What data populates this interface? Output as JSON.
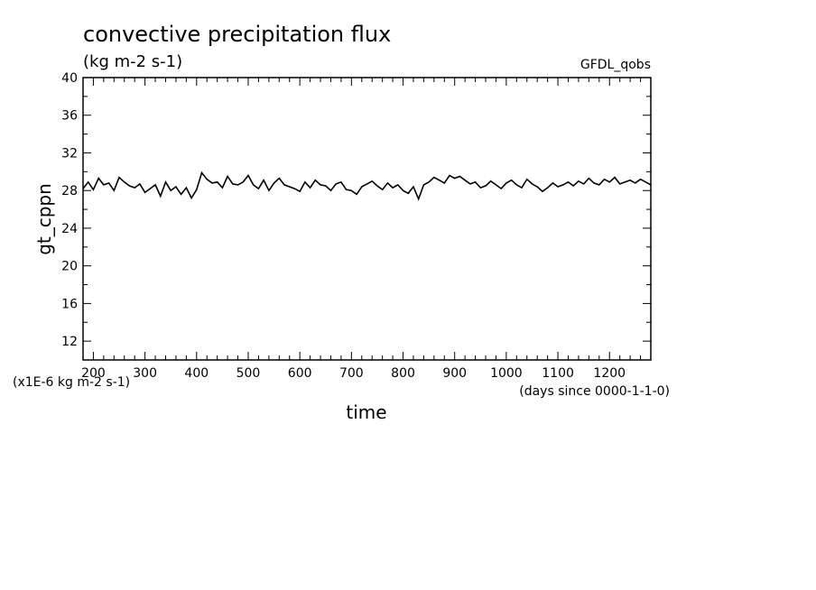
{
  "chart_data": {
    "type": "line",
    "title": "convective precipitation flux",
    "units": "(kg m-2 s-1)",
    "source": "GFDL_qobs",
    "xlabel": "time",
    "x_units": "(days since 0000-1-1-0)",
    "ylabel": "gt_cppn",
    "y_scale_note": "(x1E-6 kg m-2 s-1)",
    "xlim": [
      180,
      1280
    ],
    "ylim": [
      10,
      40
    ],
    "x_ticks": [
      200,
      300,
      400,
      500,
      600,
      700,
      800,
      900,
      1000,
      1100,
      1200
    ],
    "y_ticks": [
      12,
      16,
      20,
      24,
      28,
      32,
      36,
      40
    ],
    "grid": false,
    "series": [
      {
        "x": [
          180,
          190,
          200,
          210,
          220,
          230,
          240,
          250,
          260,
          270,
          280,
          290,
          300,
          310,
          320,
          330,
          340,
          350,
          360,
          370,
          380,
          390,
          400,
          410,
          420,
          430,
          440,
          450,
          460,
          470,
          480,
          490,
          500,
          510,
          520,
          530,
          540,
          550,
          560,
          570,
          580,
          590,
          600,
          610,
          620,
          630,
          640,
          650,
          660,
          670,
          680,
          690,
          700,
          710,
          720,
          730,
          740,
          750,
          760,
          770,
          780,
          790,
          800,
          810,
          820,
          830,
          840,
          850,
          860,
          870,
          880,
          890,
          900,
          910,
          920,
          930,
          940,
          950,
          960,
          970,
          980,
          990,
          1000,
          1010,
          1020,
          1030,
          1040,
          1050,
          1060,
          1070,
          1080,
          1090,
          1100,
          1110,
          1120,
          1130,
          1140,
          1150,
          1160,
          1170,
          1180,
          1190,
          1200,
          1210,
          1220,
          1230,
          1240,
          1250,
          1260,
          1270,
          1280
        ],
        "values": [
          28.2,
          28.9,
          28.1,
          29.3,
          28.6,
          28.8,
          28.0,
          29.4,
          28.9,
          28.5,
          28.3,
          28.7,
          27.8,
          28.2,
          28.6,
          27.4,
          28.9,
          28.0,
          28.4,
          27.6,
          28.3,
          27.2,
          28.1,
          29.9,
          29.2,
          28.8,
          28.9,
          28.3,
          29.5,
          28.7,
          28.6,
          28.9,
          29.6,
          28.6,
          28.2,
          29.1,
          28.0,
          28.8,
          29.3,
          28.6,
          28.4,
          28.2,
          27.9,
          28.9,
          28.3,
          29.1,
          28.6,
          28.5,
          28.0,
          28.7,
          28.9,
          28.1,
          28.0,
          27.6,
          28.4,
          28.7,
          29.0,
          28.5,
          28.1,
          28.8,
          28.3,
          28.6,
          28.0,
          27.7,
          28.4,
          27.1,
          28.6,
          28.9,
          29.4,
          29.1,
          28.8,
          29.6,
          29.3,
          29.5,
          29.1,
          28.7,
          28.9,
          28.3,
          28.5,
          29.0,
          28.6,
          28.2,
          28.8,
          29.1,
          28.6,
          28.3,
          29.2,
          28.7,
          28.4,
          27.9,
          28.3,
          28.8,
          28.4,
          28.6,
          28.9,
          28.5,
          29.0,
          28.7,
          29.3,
          28.8,
          28.6,
          29.2,
          28.9,
          29.4,
          28.7,
          28.9,
          29.1,
          28.8,
          29.2,
          28.9,
          28.6
        ]
      }
    ]
  }
}
